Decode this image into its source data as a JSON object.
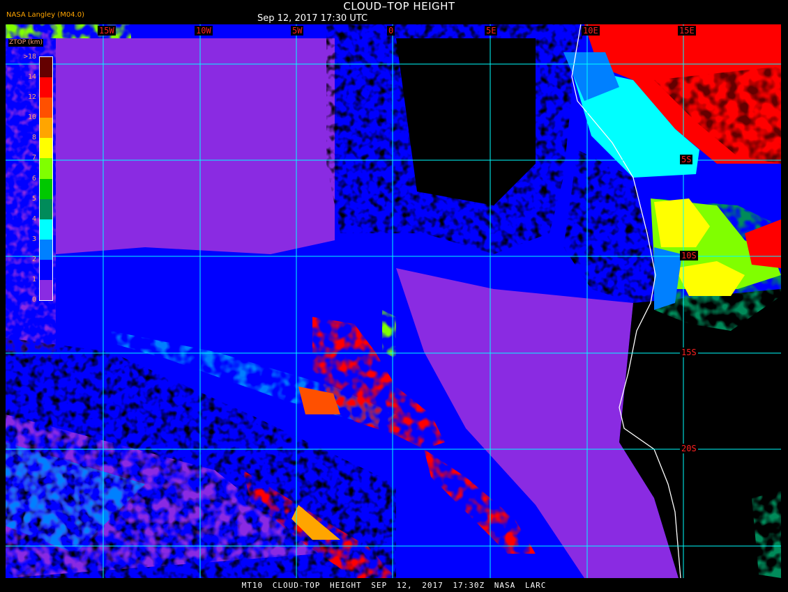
{
  "header": {
    "title": "CLOUD–TOP HEIGHT",
    "subtitle": "Sep 12, 2017 17:30 UTC",
    "provider": "NASA Langley (M04.0)"
  },
  "footer": "MT10  CLOUD-TOP HEIGHT   SEP 12, 2017 17:30Z   NASA LARC",
  "grid": {
    "longitudes": [
      "15W",
      "10W",
      "5W",
      "0",
      "5E",
      "10E",
      "15E"
    ],
    "latitudes": [
      "5S",
      "10S",
      "15S",
      "20S"
    ]
  },
  "legend": {
    "title": "ZTOP (km)",
    "labels": [
      "0",
      "1",
      "2",
      "3",
      "4",
      "5",
      "6",
      "7",
      "8",
      "10",
      "12",
      "14",
      ">18"
    ],
    "colors": [
      "#8a2be2",
      "#0000ff",
      "#0080ff",
      "#00ffff",
      "#008b5a",
      "#00c800",
      "#80ff00",
      "#ffff00",
      "#ffa500",
      "#ff5000",
      "#ff0000",
      "#640000"
    ]
  },
  "colors": {
    "grid": "#00ffff",
    "coastline": "#ffffff",
    "labels": "#ff2020"
  }
}
